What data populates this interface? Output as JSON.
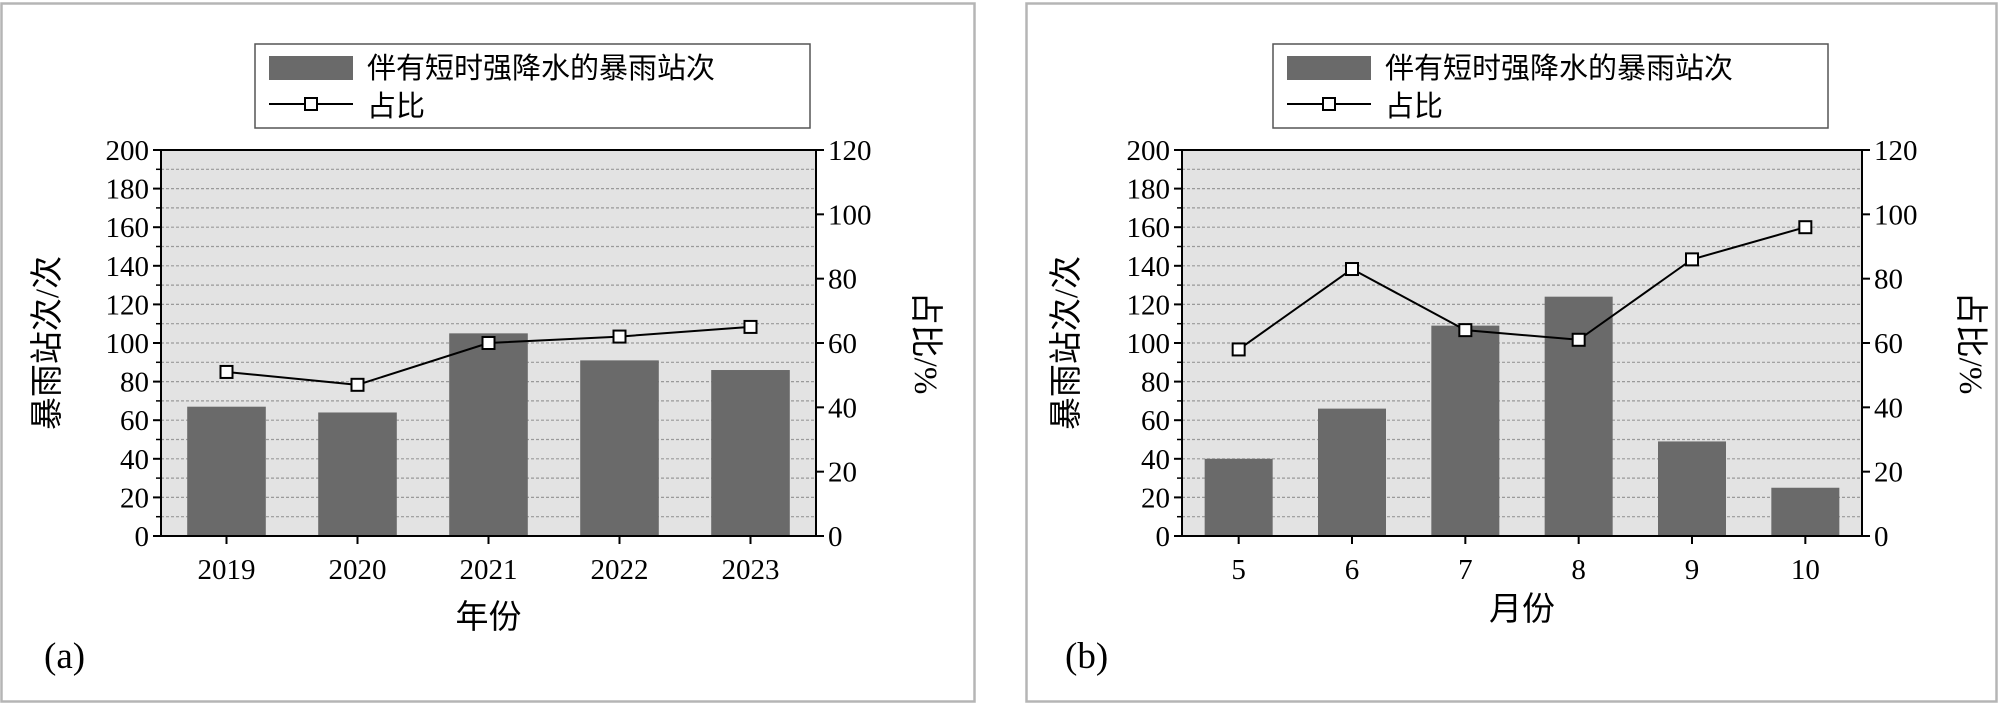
{
  "colors": {
    "bar": "#6a6a6a",
    "plot_bg": "#e3e3e3",
    "grid": "#9a9a9a",
    "frame": "#b5b5b5",
    "line": "#000000"
  },
  "chart_data": [
    {
      "type": "bar",
      "panel_label": "(a)",
      "categories": [
        "2019",
        "2020",
        "2021",
        "2022",
        "2023"
      ],
      "series": [
        {
          "name": "伴有短时强降水的暴雨站次",
          "type": "bar",
          "axis": "left",
          "values": [
            67,
            64,
            105,
            91,
            86
          ]
        },
        {
          "name": "占比",
          "type": "line",
          "axis": "right",
          "marker": "square",
          "values": [
            51,
            47,
            60,
            62,
            65
          ]
        }
      ],
      "xlabel": "年份",
      "ylabel": "暴雨站次/次",
      "y2label": "占比/%",
      "ylim": [
        0,
        200
      ],
      "y2lim": [
        0,
        120
      ],
      "yticks": [
        "0",
        "20",
        "40",
        "60",
        "80",
        "100",
        "120",
        "140",
        "160",
        "180",
        "200"
      ],
      "y2ticks": [
        "0",
        "20",
        "40",
        "60",
        "80",
        "100",
        "120"
      ],
      "grid": true,
      "legend": "top-center"
    },
    {
      "type": "bar",
      "panel_label": "(b)",
      "categories": [
        "5",
        "6",
        "7",
        "8",
        "9",
        "10"
      ],
      "series": [
        {
          "name": "伴有短时强降水的暴雨站次",
          "type": "bar",
          "axis": "left",
          "values": [
            40,
            66,
            109,
            124,
            49,
            25
          ]
        },
        {
          "name": "占比",
          "type": "line",
          "axis": "right",
          "marker": "square",
          "values": [
            58,
            83,
            64,
            61,
            86,
            96
          ]
        }
      ],
      "xlabel": "月份",
      "ylabel": "暴雨站次/次",
      "y2label": "占比/%",
      "ylim": [
        0,
        200
      ],
      "y2lim": [
        0,
        120
      ],
      "yticks": [
        "0",
        "20",
        "40",
        "60",
        "80",
        "100",
        "120",
        "140",
        "160",
        "180",
        "200"
      ],
      "y2ticks": [
        "0",
        "20",
        "40",
        "60",
        "80",
        "100",
        "120"
      ],
      "grid": true,
      "legend": "top-center"
    }
  ]
}
